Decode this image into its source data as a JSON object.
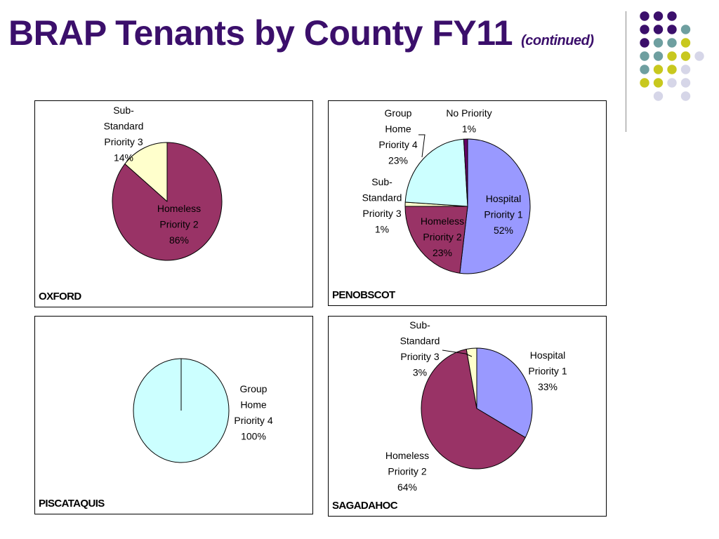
{
  "title": "BRAP Tenants by County FY11",
  "subtitle": "(continued)",
  "colors": {
    "title": "#3b0f6b",
    "hospital": "#9999ff",
    "homeless": "#993366",
    "substandard": "#ffffcc",
    "grouphome": "#ccffff",
    "nopriority": "#660066",
    "dot_purple": "#3b0f6b",
    "dot_teal": "#6e9fa0",
    "dot_yellow": "#c8c81e",
    "dot_lavender": "#d6d6e8"
  },
  "chart_data": [
    {
      "type": "pie",
      "county": "OXFORD",
      "slices": [
        {
          "label": "Homeless Priority 2",
          "value": 86,
          "color_key": "homeless",
          "display": [
            "Homeless",
            "Priority 2",
            "86%"
          ]
        },
        {
          "label": "Sub-Standard Priority 3",
          "value": 14,
          "color_key": "substandard",
          "display": [
            "Sub-",
            "Standard",
            "Priority 3",
            "14%"
          ]
        }
      ]
    },
    {
      "type": "pie",
      "county": "PENOBSCOT",
      "slices": [
        {
          "label": "Hospital Priority 1",
          "value": 52,
          "color_key": "hospital",
          "display": [
            "Hospital",
            "Priority 1",
            "52%"
          ]
        },
        {
          "label": "Homeless Priority 2",
          "value": 23,
          "color_key": "homeless",
          "display": [
            "Homeless",
            "Priority 2",
            "23%"
          ]
        },
        {
          "label": "Sub-Standard Priority 3",
          "value": 1,
          "color_key": "substandard",
          "display": [
            "Sub-",
            "Standard",
            "Priority 3",
            "1%"
          ]
        },
        {
          "label": "Group Home Priority 4",
          "value": 23,
          "color_key": "grouphome",
          "display": [
            "Group",
            "Home",
            "Priority 4",
            "23%"
          ]
        },
        {
          "label": "No Priority",
          "value": 1,
          "color_key": "nopriority",
          "display": [
            "No Priority",
            "1%"
          ]
        }
      ]
    },
    {
      "type": "pie",
      "county": "PISCATAQUIS",
      "slices": [
        {
          "label": "Group Home Priority 4",
          "value": 100,
          "color_key": "grouphome",
          "display": [
            "Group",
            "Home",
            "Priority 4",
            "100%"
          ]
        }
      ]
    },
    {
      "type": "pie",
      "county": "SAGADAHOC",
      "slices": [
        {
          "label": "Hospital Priority 1",
          "value": 33,
          "color_key": "hospital",
          "display": [
            "Hospital",
            "Priority 1",
            "33%"
          ]
        },
        {
          "label": "Homeless Priority 2",
          "value": 64,
          "color_key": "homeless",
          "display": [
            "Homeless",
            "Priority 2",
            "64%"
          ]
        },
        {
          "label": "Sub-Standard Priority 3",
          "value": 3,
          "color_key": "substandard",
          "display": [
            "Sub-",
            "Standard",
            "Priority 3",
            "3%"
          ]
        }
      ]
    }
  ]
}
